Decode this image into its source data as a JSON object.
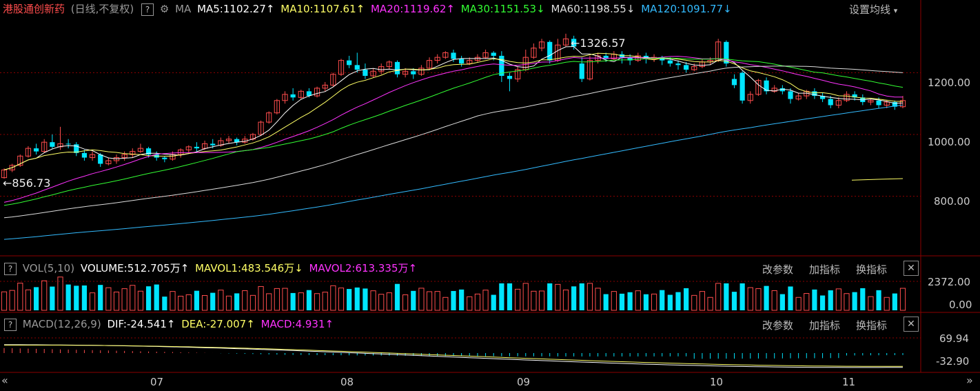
{
  "header": {
    "title": "港股通创新药",
    "subtitle": "(日线,不复权)",
    "help": "?",
    "ma_label": "MA",
    "ma5": "MA5:1102.27↑",
    "ma10": "MA10:1107.61↑",
    "ma20": "MA20:1119.62↑",
    "ma30": "MA30:1151.53↓",
    "ma60": "MA60:1198.55↓",
    "ma120": "MA120:1091.77↓",
    "settings": "设置均线",
    "settings_arrow": "▾"
  },
  "vol_header": {
    "help": "?",
    "name": "VOL(5,10)",
    "volume": "VOLUME:512.705万↑",
    "mavol1": "MAVOL1:483.546万↓",
    "mavol2": "MAVOL2:613.335万↑",
    "btn_params": "改参数",
    "btn_add": "加指标",
    "btn_switch": "换指标",
    "close": "✕"
  },
  "macd_header": {
    "help": "?",
    "name": "MACD(12,26,9)",
    "dif": "DIF:-24.541↑",
    "dea": "DEA:-27.007↑",
    "macd": "MACD:4.931↑",
    "btn_params": "改参数",
    "btn_add": "加指标",
    "btn_switch": "换指标",
    "close": "✕"
  },
  "price_axis": [
    "1200.00",
    "1000.00",
    "800.00"
  ],
  "vol_axis": [
    "2372.00",
    "0.00"
  ],
  "macd_axis": [
    "69.94",
    "-32.90"
  ],
  "x_labels": [
    "07",
    "08",
    "09",
    "10",
    "11"
  ],
  "annotations": {
    "high": "1326.57",
    "low": "856.73"
  },
  "nav": {
    "left": "«",
    "right": "»"
  },
  "colors": {
    "up": "#ff4d4d",
    "down": "#00e5ff",
    "ma5": "#ffffff",
    "ma10": "#ffff66",
    "ma20": "#ff33ff",
    "ma30": "#33ff33",
    "ma60": "#dddddd",
    "ma120": "#33bbff",
    "grid": "#8b0000"
  },
  "chart_data": {
    "type": "candlestick",
    "xlabel": "",
    "ylabel": "",
    "ylim_price": [
      620,
      1380
    ],
    "series": [
      {
        "name": "MA5",
        "value_last": 1102.27
      },
      {
        "name": "MA10",
        "value_last": 1107.61
      },
      {
        "name": "MA20",
        "value_last": 1119.62
      },
      {
        "name": "MA30",
        "value_last": 1151.53
      },
      {
        "name": "MA60",
        "value_last": 1198.55
      },
      {
        "name": "MA120",
        "value_last": 1091.77
      }
    ],
    "candles": [
      [
        860,
        885,
        856.73,
        890
      ],
      [
        885,
        900,
        878,
        905
      ],
      [
        900,
        930,
        895,
        935
      ],
      [
        930,
        955,
        925,
        962
      ],
      [
        955,
        945,
        935,
        970
      ],
      [
        945,
        975,
        940,
        985
      ],
      [
        975,
        960,
        955,
        1000
      ],
      [
        960,
        970,
        950,
        1025
      ],
      [
        970,
        968,
        955,
        985
      ],
      [
        968,
        940,
        930,
        975
      ],
      [
        940,
        925,
        915,
        950
      ],
      [
        925,
        935,
        915,
        945
      ],
      [
        935,
        905,
        895,
        940
      ],
      [
        905,
        915,
        900,
        925
      ],
      [
        915,
        925,
        905,
        935
      ],
      [
        925,
        935,
        915,
        945
      ],
      [
        935,
        945,
        925,
        955
      ],
      [
        945,
        955,
        940,
        970
      ],
      [
        955,
        935,
        925,
        960
      ],
      [
        935,
        925,
        915,
        945
      ],
      [
        925,
        920,
        910,
        930
      ],
      [
        920,
        935,
        915,
        945
      ],
      [
        935,
        950,
        925,
        955
      ],
      [
        950,
        960,
        940,
        965
      ],
      [
        960,
        955,
        945,
        975
      ],
      [
        955,
        970,
        950,
        980
      ],
      [
        970,
        965,
        955,
        985
      ],
      [
        965,
        980,
        960,
        990
      ],
      [
        980,
        985,
        970,
        995
      ],
      [
        985,
        975,
        965,
        990
      ],
      [
        975,
        985,
        970,
        995
      ],
      [
        985,
        1000,
        980,
        1005
      ],
      [
        1000,
        1040,
        995,
        1045
      ],
      [
        1040,
        1070,
        1035,
        1075
      ],
      [
        1070,
        1110,
        1065,
        1115
      ],
      [
        1110,
        1130,
        1100,
        1140
      ],
      [
        1130,
        1120,
        1110,
        1150
      ],
      [
        1120,
        1140,
        1115,
        1145
      ],
      [
        1140,
        1125,
        1120,
        1150
      ],
      [
        1125,
        1150,
        1120,
        1155
      ],
      [
        1150,
        1160,
        1140,
        1170
      ],
      [
        1160,
        1195,
        1155,
        1200
      ],
      [
        1195,
        1240,
        1190,
        1245
      ],
      [
        1240,
        1225,
        1215,
        1255
      ],
      [
        1225,
        1210,
        1200,
        1265
      ],
      [
        1210,
        1190,
        1180,
        1230
      ],
      [
        1190,
        1205,
        1185,
        1215
      ],
      [
        1205,
        1220,
        1195,
        1230
      ],
      [
        1220,
        1235,
        1210,
        1240
      ],
      [
        1235,
        1195,
        1185,
        1240
      ],
      [
        1195,
        1205,
        1185,
        1215
      ],
      [
        1205,
        1195,
        1180,
        1215
      ],
      [
        1195,
        1215,
        1190,
        1225
      ],
      [
        1215,
        1240,
        1210,
        1250
      ],
      [
        1240,
        1250,
        1230,
        1260
      ],
      [
        1250,
        1265,
        1245,
        1270
      ],
      [
        1265,
        1245,
        1235,
        1275
      ],
      [
        1245,
        1230,
        1220,
        1255
      ],
      [
        1230,
        1240,
        1225,
        1250
      ],
      [
        1240,
        1250,
        1235,
        1260
      ],
      [
        1250,
        1265,
        1245,
        1275
      ],
      [
        1265,
        1255,
        1240,
        1270
      ],
      [
        1255,
        1190,
        1170,
        1270
      ],
      [
        1190,
        1180,
        1140,
        1200
      ],
      [
        1180,
        1210,
        1170,
        1220
      ],
      [
        1210,
        1250,
        1205,
        1275
      ],
      [
        1250,
        1280,
        1245,
        1295
      ],
      [
        1280,
        1300,
        1270,
        1310
      ],
      [
        1300,
        1240,
        1230,
        1305
      ],
      [
        1240,
        1290,
        1235,
        1310
      ],
      [
        1290,
        1310,
        1285,
        1326.57
      ],
      [
        1310,
        1285,
        1275,
        1320
      ],
      [
        1230,
        1180,
        1170,
        1250
      ],
      [
        1180,
        1240,
        1175,
        1255
      ],
      [
        1240,
        1255,
        1230,
        1265
      ],
      [
        1255,
        1245,
        1235,
        1265
      ],
      [
        1245,
        1260,
        1240,
        1270
      ],
      [
        1260,
        1250,
        1230,
        1270
      ],
      [
        1250,
        1240,
        1225,
        1260
      ],
      [
        1240,
        1255,
        1235,
        1265
      ],
      [
        1255,
        1245,
        1230,
        1265
      ],
      [
        1245,
        1250,
        1235,
        1260
      ],
      [
        1250,
        1240,
        1225,
        1255
      ],
      [
        1240,
        1230,
        1220,
        1250
      ],
      [
        1230,
        1225,
        1210,
        1240
      ],
      [
        1225,
        1210,
        1200,
        1235
      ],
      [
        1210,
        1220,
        1205,
        1230
      ],
      [
        1220,
        1235,
        1215,
        1245
      ],
      [
        1235,
        1240,
        1225,
        1250
      ],
      [
        1240,
        1300,
        1235,
        1310
      ],
      [
        1300,
        1230,
        1220,
        1305
      ],
      [
        1180,
        1160,
        1150,
        1195
      ],
      [
        1200,
        1110,
        1100,
        1205
      ],
      [
        1110,
        1130,
        1100,
        1140
      ],
      [
        1130,
        1175,
        1125,
        1180
      ],
      [
        1175,
        1140,
        1130,
        1185
      ],
      [
        1140,
        1150,
        1135,
        1160
      ],
      [
        1150,
        1140,
        1130,
        1160
      ],
      [
        1140,
        1115,
        1100,
        1150
      ],
      [
        1115,
        1125,
        1110,
        1135
      ],
      [
        1125,
        1140,
        1115,
        1145
      ],
      [
        1140,
        1125,
        1115,
        1150
      ],
      [
        1125,
        1115,
        1105,
        1135
      ],
      [
        1115,
        1095,
        1085,
        1125
      ],
      [
        1095,
        1110,
        1085,
        1120
      ],
      [
        1110,
        1130,
        1105,
        1140
      ],
      [
        1130,
        1120,
        1110,
        1140
      ],
      [
        1120,
        1105,
        1095,
        1130
      ],
      [
        1105,
        1110,
        1095,
        1115
      ],
      [
        1110,
        1095,
        1085,
        1120
      ],
      [
        1095,
        1105,
        1085,
        1110
      ],
      [
        1105,
        1090,
        1080,
        1110
      ],
      [
        1090,
        1110,
        1085,
        1125
      ]
    ]
  }
}
